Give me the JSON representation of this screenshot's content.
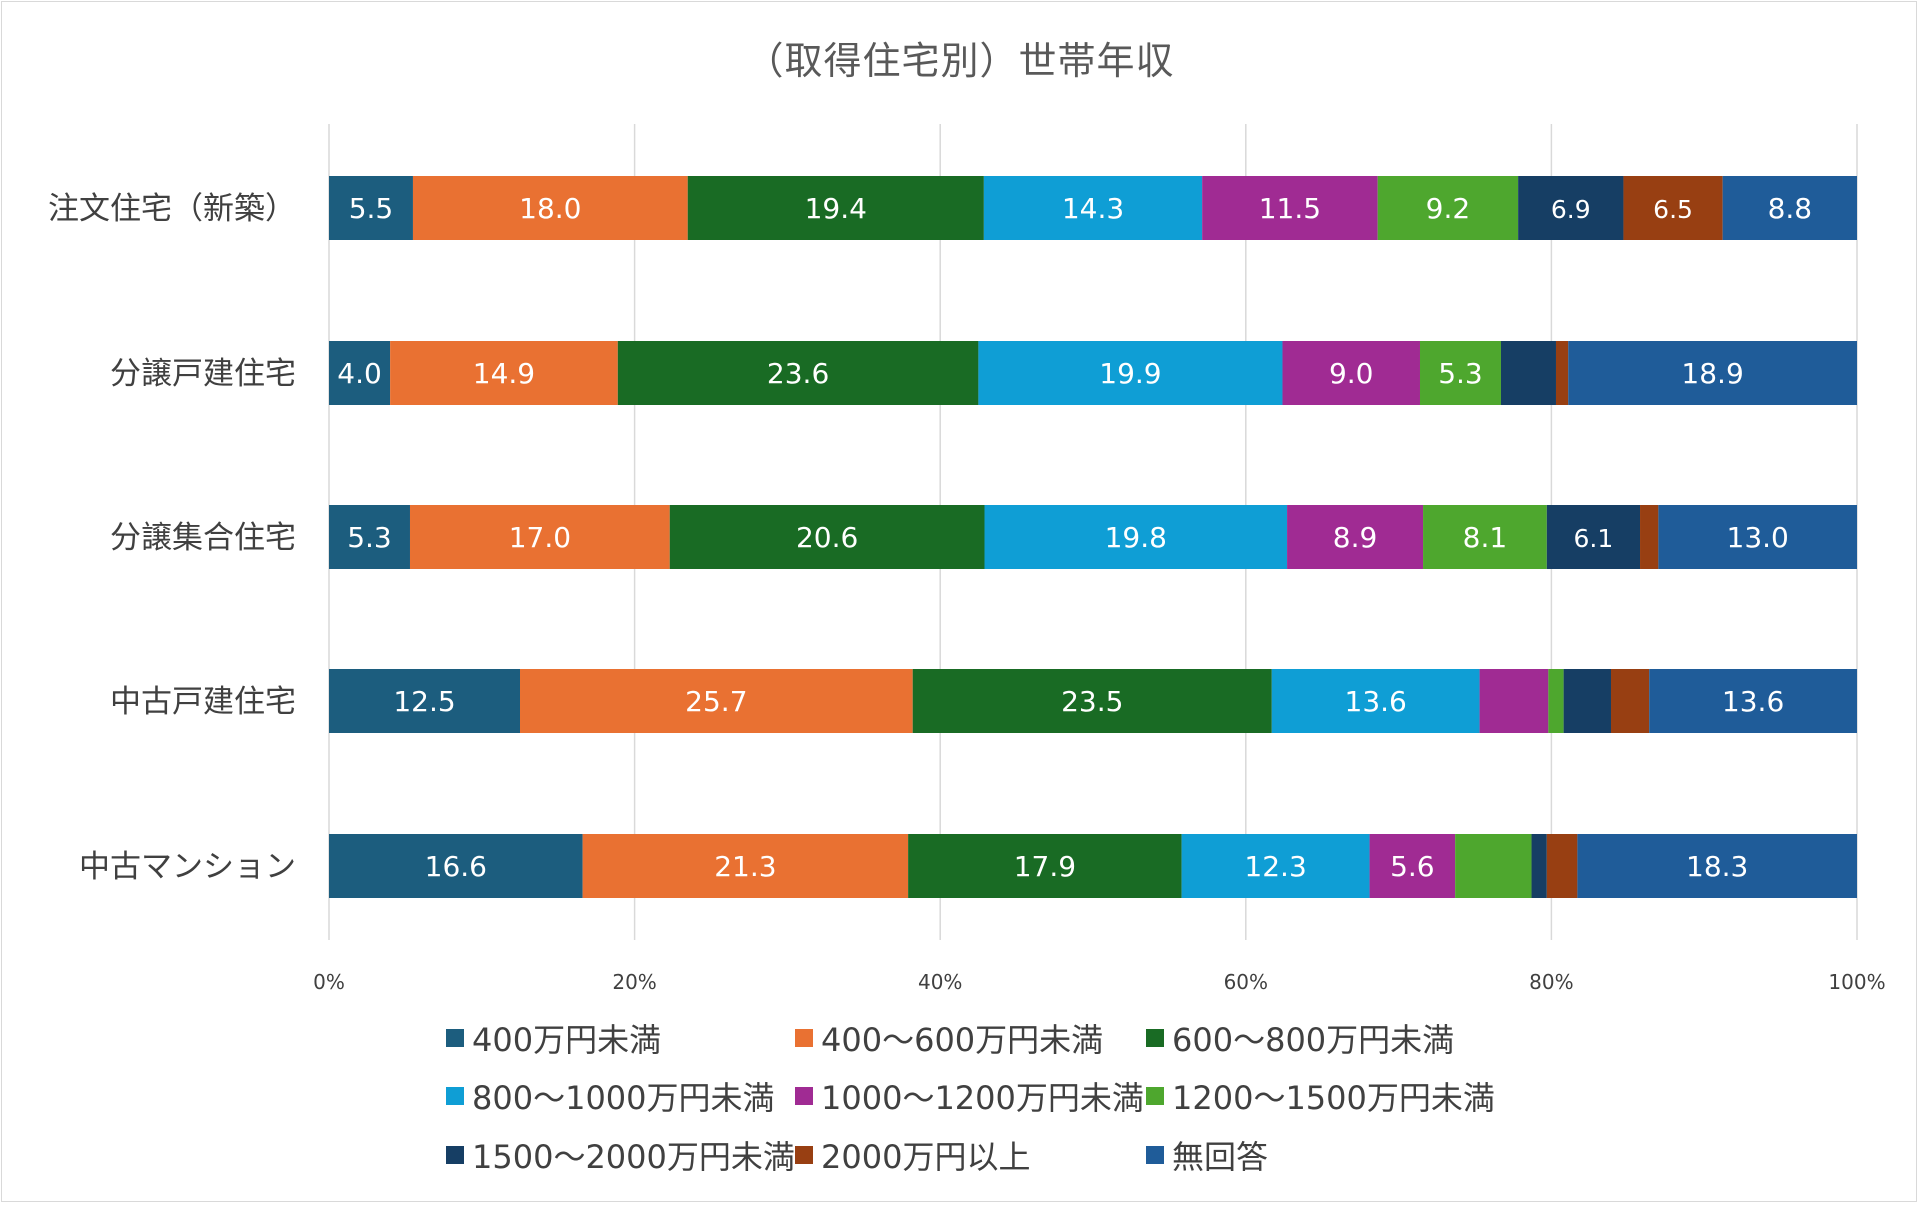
{
  "chart_data": {
    "type": "bar",
    "orientation": "horizontal",
    "stacked": "percent",
    "title": "（取得住宅別）世帯年収",
    "categories": [
      "注文住宅（新築）",
      "分譲戸建住宅",
      "分譲集合住宅",
      "中古戸建住宅",
      "中古マンション"
    ],
    "xlim": [
      0,
      100
    ],
    "x_ticks": [
      "0%",
      "20%",
      "40%",
      "60%",
      "80%",
      "100%"
    ],
    "grid": true,
    "legend_position": "bottom",
    "series": [
      {
        "name": "400万円未満",
        "color": "#1c5d7e",
        "values": [
          5.5,
          4.0,
          5.3,
          12.5,
          16.6
        ],
        "labels": [
          "5.5",
          "4.0",
          "5.3",
          "12.5",
          "16.6"
        ]
      },
      {
        "name": "400～600万円未満",
        "color": "#e97132",
        "values": [
          18.0,
          14.9,
          17.0,
          25.7,
          21.3
        ],
        "labels": [
          "18.0",
          "14.9",
          "17.0",
          "25.7",
          "21.3"
        ]
      },
      {
        "name": "600～800万円未満",
        "color": "#196b24",
        "values": [
          19.4,
          23.6,
          20.6,
          23.5,
          17.9
        ],
        "labels": [
          "19.4",
          "23.6",
          "20.6",
          "23.5",
          "17.9"
        ]
      },
      {
        "name": "800～1000万円未満",
        "color": "#0f9ed5",
        "values": [
          14.3,
          19.9,
          19.8,
          13.6,
          12.3
        ],
        "labels": [
          "14.3",
          "19.9",
          "19.8",
          "13.6",
          "12.3"
        ]
      },
      {
        "name": "1000～1200万円未満",
        "color": "#a02b93",
        "values": [
          11.5,
          9.0,
          8.9,
          4.5,
          5.6
        ],
        "labels": [
          "11.5",
          "9.0",
          "8.9",
          "",
          "5.6"
        ]
      },
      {
        "name": "1200～1500万円未満",
        "color": "#4ea72e",
        "values": [
          9.2,
          5.3,
          8.1,
          1.0,
          5.0
        ],
        "labels": [
          "9.2",
          "5.3",
          "8.1",
          "",
          ""
        ]
      },
      {
        "name": "1500～2000万円未満",
        "color": "#163e64",
        "values": [
          6.9,
          3.6,
          6.1,
          3.1,
          1.0
        ],
        "labels": [
          "6.9",
          "",
          "6.1",
          "",
          ""
        ]
      },
      {
        "name": "2000万円以上",
        "color": "#983f12",
        "values": [
          6.5,
          0.8,
          1.2,
          2.5,
          2.0
        ],
        "labels": [
          "6.5",
          "",
          "",
          "",
          ""
        ]
      },
      {
        "name": "無回答",
        "color": "#1f5c99",
        "values": [
          8.8,
          18.9,
          13.0,
          13.6,
          18.3
        ],
        "labels": [
          "8.8",
          "18.9",
          "13.0",
          "13.6",
          "18.3"
        ]
      }
    ]
  }
}
